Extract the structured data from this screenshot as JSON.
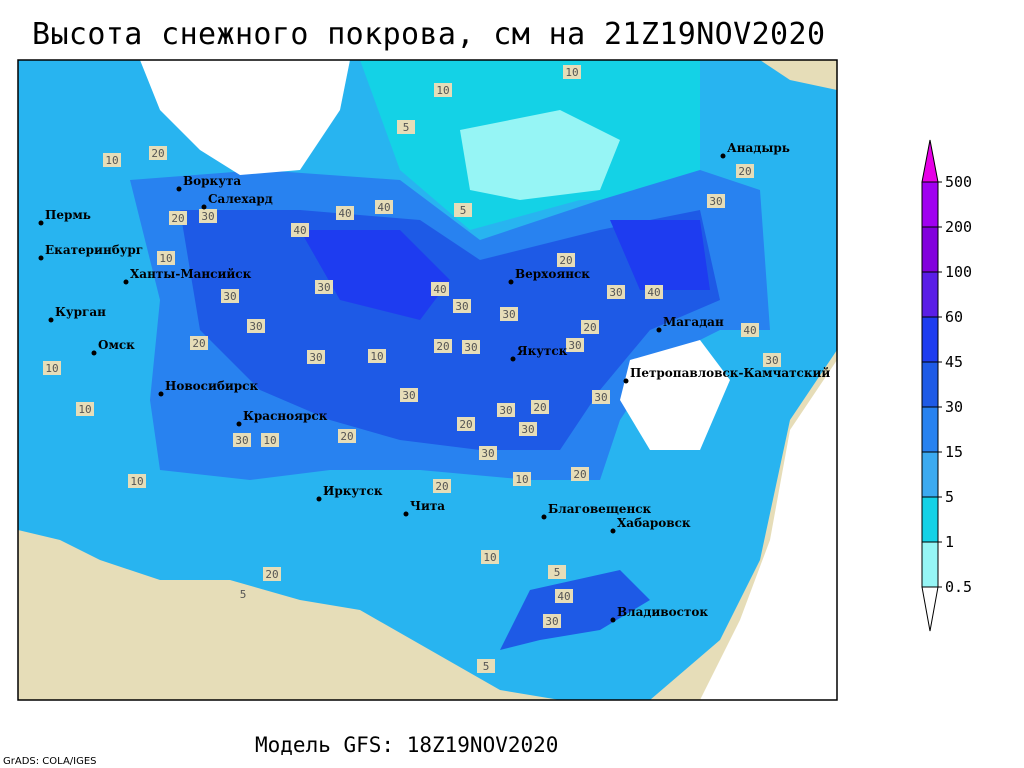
{
  "title": "Высота снежного покрова, см на 21Z19NOV2020",
  "footer": "Модель GFS: 18Z19NOV2020",
  "credit": "GrADS: COLA/IGES",
  "cities": [
    "Воркута",
    "Салехард",
    "Пермь",
    "Екатеринбург",
    "Ханты-Мансийск",
    "Курган",
    "Омск",
    "Новосибирск",
    "Красноярск",
    "Иркутск",
    "Чита",
    "Верхоянск",
    "Якутск",
    "Магадан",
    "Анадырь",
    "Петропавловск-Камчатский",
    "Благовещенск",
    "Хабаровск",
    "Владивосток"
  ],
  "contour_labels": [
    10,
    10,
    5,
    10,
    20,
    20,
    30,
    40,
    40,
    40,
    5,
    10,
    30,
    30,
    40,
    30,
    20,
    30,
    40,
    20,
    30,
    30,
    10,
    20,
    30,
    30,
    20,
    30,
    10,
    10,
    30,
    30,
    20,
    30,
    20,
    30,
    30,
    10,
    20,
    30,
    10,
    20,
    10,
    20,
    10,
    20,
    5,
    40,
    30,
    5,
    5,
    30,
    20,
    40,
    30
  ],
  "legend": {
    "ticks": [
      500,
      200,
      100,
      60,
      45,
      30,
      15,
      5,
      1,
      0.5
    ],
    "colors": [
      "#e600e6",
      "#a000f0",
      "#8200dc",
      "#5a1ee6",
      "#1e3cf0",
      "#1e5ae6",
      "#2882f0",
      "#3caaf0",
      "#14d2e6",
      "#96f5f5",
      "#ffffff"
    ]
  }
}
